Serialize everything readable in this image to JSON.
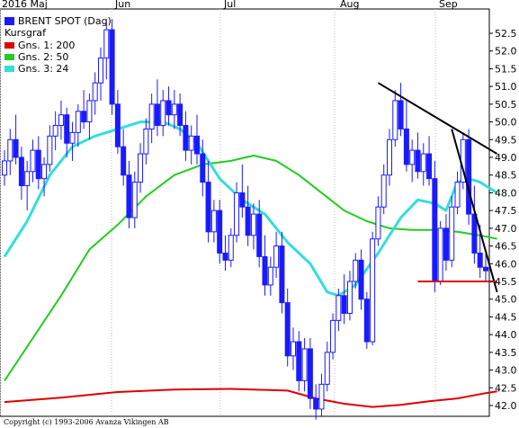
{
  "chart_data": {
    "type": "candlestick",
    "title": "BRENT SPOT (Dag)",
    "ylim": [
      41.5,
      53.0
    ],
    "y_ticks": [
      "52.5",
      "52.0",
      "51.5",
      "51.0",
      "50.5",
      "50.0",
      "49.5",
      "49.0",
      "48.5",
      "48.0",
      "47.5",
      "47.0",
      "46.5",
      "46.0",
      "45.5",
      "45.0",
      "44.5",
      "44.0",
      "43.5",
      "43.0",
      "42.5",
      "42.0"
    ],
    "month_labels": [
      "2016 Maj",
      "Jun",
      "Jul",
      "Aug",
      "Sep"
    ],
    "legend": {
      "main": "BRENT SPOT (Dag)",
      "subtitle": "Kursgraf",
      "items": [
        {
          "label": "Gns. 1: 200",
          "color": "#e00000"
        },
        {
          "label": "Gns. 2: 50",
          "color": "#22cc22"
        },
        {
          "label": "Gns. 3: 24",
          "color": "#33dddd"
        }
      ]
    },
    "copyright": "Copyright (c) 1993-2006 Avanza Vikingen AB",
    "candles": [
      [
        48.5,
        49.2,
        48.2,
        48.9
      ],
      [
        48.9,
        49.8,
        48.5,
        49.5
      ],
      [
        49.5,
        50.2,
        48.8,
        49.0
      ],
      [
        49.0,
        49.3,
        47.8,
        48.2
      ],
      [
        48.2,
        48.9,
        47.5,
        48.6
      ],
      [
        48.6,
        49.5,
        48.3,
        49.2
      ],
      [
        49.2,
        49.6,
        48.1,
        48.4
      ],
      [
        48.4,
        49.0,
        47.9,
        48.8
      ],
      [
        48.8,
        49.9,
        48.6,
        49.6
      ],
      [
        49.6,
        50.3,
        49.2,
        49.9
      ],
      [
        49.9,
        50.6,
        49.5,
        50.2
      ],
      [
        50.2,
        50.4,
        49.0,
        49.4
      ],
      [
        49.4,
        50.0,
        48.9,
        49.7
      ],
      [
        49.7,
        50.5,
        49.3,
        50.3
      ],
      [
        50.3,
        50.9,
        49.8,
        50.0
      ],
      [
        50.0,
        50.8,
        49.5,
        50.6
      ],
      [
        50.6,
        51.4,
        50.2,
        51.1
      ],
      [
        51.1,
        52.1,
        50.6,
        51.8
      ],
      [
        51.8,
        52.8,
        51.2,
        52.6
      ],
      [
        52.6,
        52.9,
        50.2,
        50.5
      ],
      [
        50.5,
        50.9,
        49.1,
        49.3
      ],
      [
        49.3,
        49.8,
        48.2,
        48.5
      ],
      [
        48.5,
        48.9,
        47.0,
        47.3
      ],
      [
        47.3,
        48.6,
        47.0,
        48.3
      ],
      [
        48.3,
        49.4,
        48.0,
        49.1
      ],
      [
        49.1,
        50.1,
        48.8,
        49.8
      ],
      [
        49.8,
        50.8,
        49.4,
        50.5
      ],
      [
        50.5,
        51.2,
        49.6,
        49.9
      ],
      [
        49.9,
        50.9,
        49.6,
        50.6
      ],
      [
        50.6,
        51.0,
        49.9,
        50.2
      ],
      [
        50.2,
        50.9,
        49.8,
        50.5
      ],
      [
        50.5,
        50.8,
        49.6,
        49.9
      ],
      [
        49.9,
        50.3,
        48.9,
        49.2
      ],
      [
        49.2,
        49.9,
        48.8,
        49.6
      ],
      [
        49.6,
        50.2,
        48.8,
        49.1
      ],
      [
        49.1,
        49.5,
        47.9,
        48.3
      ],
      [
        48.3,
        48.9,
        46.6,
        46.9
      ],
      [
        46.9,
        47.8,
        46.6,
        47.5
      ],
      [
        47.5,
        47.8,
        46.0,
        46.3
      ],
      [
        46.3,
        46.8,
        45.8,
        46.1
      ],
      [
        46.1,
        47.0,
        45.9,
        46.8
      ],
      [
        46.8,
        48.3,
        46.6,
        48.0
      ],
      [
        48.0,
        48.8,
        47.3,
        47.6
      ],
      [
        47.6,
        48.2,
        46.5,
        46.8
      ],
      [
        46.8,
        47.7,
        46.4,
        47.4
      ],
      [
        47.4,
        47.8,
        45.9,
        46.2
      ],
      [
        46.2,
        46.8,
        45.1,
        45.4
      ],
      [
        45.4,
        46.2,
        45.1,
        45.9
      ],
      [
        45.9,
        46.9,
        45.6,
        46.5
      ],
      [
        46.5,
        46.9,
        44.6,
        44.9
      ],
      [
        44.9,
        45.3,
        43.1,
        43.4
      ],
      [
        43.4,
        44.2,
        43.0,
        43.8
      ],
      [
        43.8,
        44.1,
        42.4,
        42.7
      ],
      [
        42.7,
        43.9,
        42.4,
        43.6
      ],
      [
        43.6,
        43.9,
        41.9,
        42.2
      ],
      [
        42.2,
        42.6,
        41.6,
        41.9
      ],
      [
        41.9,
        42.9,
        41.7,
        42.6
      ],
      [
        42.6,
        43.8,
        42.4,
        43.5
      ],
      [
        43.5,
        44.6,
        43.3,
        44.4
      ],
      [
        44.4,
        45.3,
        44.1,
        45.1
      ],
      [
        45.1,
        45.7,
        44.3,
        44.6
      ],
      [
        44.6,
        45.8,
        44.4,
        45.5
      ],
      [
        45.5,
        46.3,
        45.3,
        46.1
      ],
      [
        46.1,
        46.4,
        44.7,
        45.0
      ],
      [
        45.0,
        45.2,
        43.6,
        43.8
      ],
      [
        43.8,
        46.9,
        43.7,
        46.7
      ],
      [
        46.7,
        47.9,
        46.5,
        47.6
      ],
      [
        47.6,
        48.8,
        47.4,
        48.5
      ],
      [
        48.5,
        49.8,
        48.2,
        49.5
      ],
      [
        49.5,
        50.9,
        49.3,
        50.6
      ],
      [
        50.6,
        51.1,
        49.6,
        49.8
      ],
      [
        49.8,
        50.6,
        48.6,
        48.8
      ],
      [
        48.8,
        49.5,
        48.3,
        49.2
      ],
      [
        49.2,
        49.7,
        48.4,
        48.6
      ],
      [
        48.6,
        49.4,
        48.2,
        49.1
      ],
      [
        49.1,
        49.6,
        48.2,
        48.4
      ],
      [
        48.4,
        48.9,
        45.2,
        45.5
      ],
      [
        45.5,
        47.2,
        45.4,
        47.0
      ],
      [
        47.0,
        47.4,
        45.8,
        46.1
      ],
      [
        46.1,
        47.9,
        45.9,
        47.6
      ],
      [
        47.6,
        48.6,
        47.4,
        48.3
      ],
      [
        48.3,
        49.7,
        48.1,
        49.5
      ],
      [
        49.5,
        49.8,
        47.1,
        47.4
      ],
      [
        47.4,
        48.2,
        46.0,
        46.3
      ],
      [
        46.3,
        47.1,
        45.6,
        45.9
      ],
      [
        45.9,
        46.3,
        45.5,
        45.8
      ]
    ],
    "moving_averages": [
      {
        "name": "Gns. 1: 200",
        "color": "#e00000",
        "values": [
          [
            0,
            42.1
          ],
          [
            10,
            42.22
          ],
          [
            20,
            42.38
          ],
          [
            30,
            42.45
          ],
          [
            40,
            42.47
          ],
          [
            50,
            42.42
          ],
          [
            55,
            42.2
          ],
          [
            60,
            42.05
          ],
          [
            65,
            41.96
          ],
          [
            70,
            42.02
          ],
          [
            75,
            42.12
          ],
          [
            80,
            42.2
          ],
          [
            85,
            42.35
          ],
          [
            87,
            42.4
          ]
        ]
      },
      {
        "name": "Gns. 2: 50",
        "color": "#22cc22",
        "values": [
          [
            0,
            42.7
          ],
          [
            5,
            43.9
          ],
          [
            10,
            45.1
          ],
          [
            15,
            46.4
          ],
          [
            20,
            47.1
          ],
          [
            25,
            47.9
          ],
          [
            30,
            48.5
          ],
          [
            35,
            48.8
          ],
          [
            40,
            48.9
          ],
          [
            44,
            49.05
          ],
          [
            48,
            48.9
          ],
          [
            52,
            48.5
          ],
          [
            56,
            48.0
          ],
          [
            60,
            47.5
          ],
          [
            64,
            47.2
          ],
          [
            68,
            47.0
          ],
          [
            72,
            46.95
          ],
          [
            76,
            46.95
          ],
          [
            80,
            46.9
          ],
          [
            84,
            46.8
          ],
          [
            87,
            46.7
          ]
        ]
      },
      {
        "name": "Gns. 3: 24",
        "color": "#33dddd",
        "values": [
          [
            0,
            46.2
          ],
          [
            4,
            47.2
          ],
          [
            8,
            48.5
          ],
          [
            12,
            49.3
          ],
          [
            16,
            49.6
          ],
          [
            20,
            49.8
          ],
          [
            24,
            50.0
          ],
          [
            28,
            50.0
          ],
          [
            31,
            49.8
          ],
          [
            34,
            49.4
          ],
          [
            38,
            48.4
          ],
          [
            42,
            47.8
          ],
          [
            46,
            47.4
          ],
          [
            50,
            46.6
          ],
          [
            54,
            46.0
          ],
          [
            57,
            45.2
          ],
          [
            59,
            45.1
          ],
          [
            62,
            45.4
          ],
          [
            66,
            46.3
          ],
          [
            70,
            47.3
          ],
          [
            73,
            47.8
          ],
          [
            76,
            47.7
          ],
          [
            78,
            47.5
          ],
          [
            80,
            48.3
          ],
          [
            82,
            48.4
          ],
          [
            84,
            48.3
          ],
          [
            86,
            48.1
          ],
          [
            87,
            48.0
          ]
        ]
      }
    ],
    "trendlines": [
      {
        "color": "#000000",
        "from": [
          66,
          51.1
        ],
        "to": [
          87,
          49.1
        ]
      },
      {
        "color": "#000000",
        "from": [
          79,
          49.8
        ],
        "to": [
          87,
          45.2
        ]
      },
      {
        "color": "#e00000",
        "from": [
          73,
          45.5
        ],
        "to": [
          87,
          45.5
        ]
      }
    ]
  }
}
